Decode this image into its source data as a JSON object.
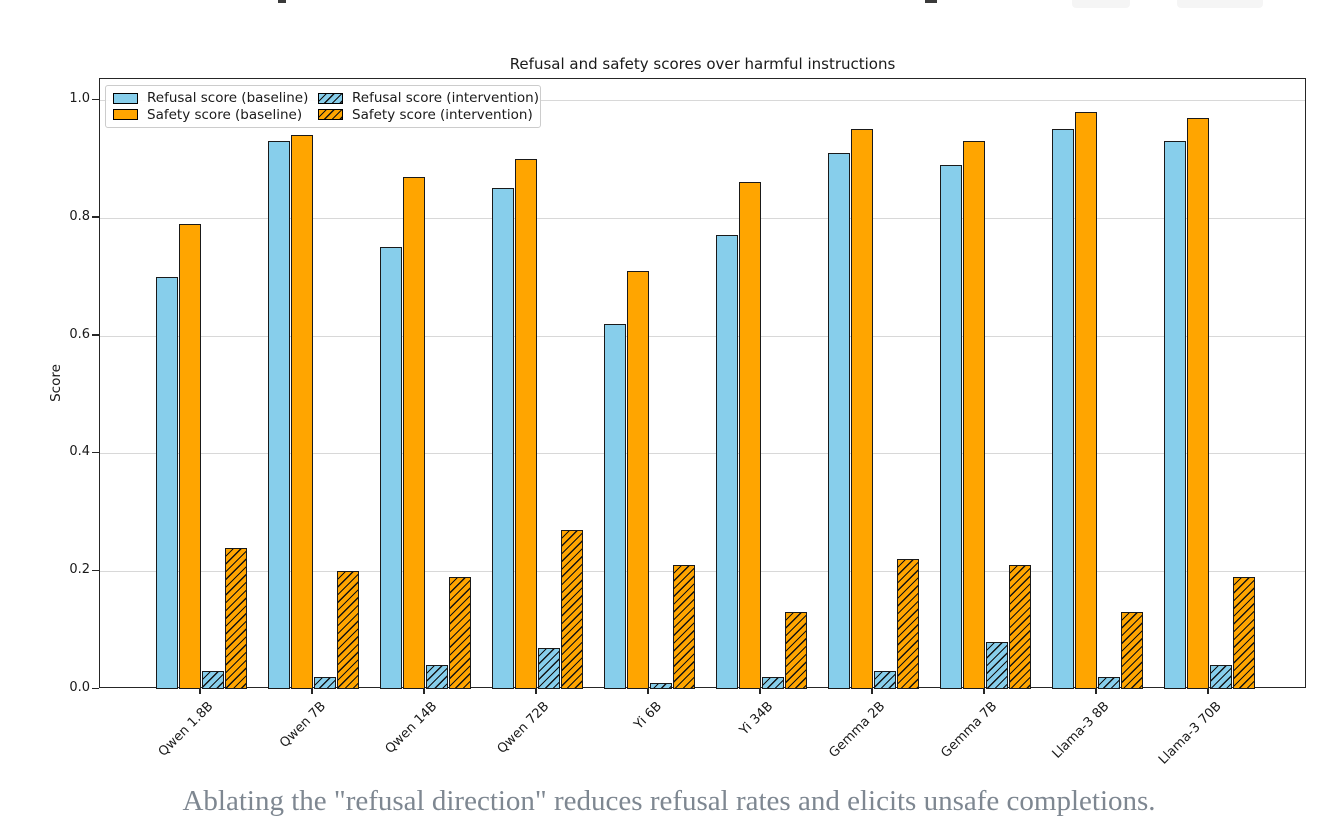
{
  "page": {
    "caption": "Ablating the \"refusal direction\" reduces refusal rates and elicits unsafe completions.",
    "decor": {
      "fragment_button_color": "#f5f5f5",
      "speck_color": "#3a3a3a"
    }
  },
  "chart_data": {
    "type": "bar",
    "title": "Refusal and safety scores over harmful instructions",
    "xlabel": "",
    "ylabel": "Score",
    "ylim": [
      0.0,
      1.04
    ],
    "yticks": [
      0.0,
      0.2,
      0.4,
      0.6,
      0.8,
      1.0
    ],
    "grid": true,
    "legend_position": "upper left",
    "categories": [
      "Qwen 1.8B",
      "Qwen 7B",
      "Qwen 14B",
      "Qwen 72B",
      "Yi 6B",
      "Yi 34B",
      "Gemma 2B",
      "Gemma 7B",
      "Llama-3 8B",
      "Llama-3 70B"
    ],
    "series": [
      {
        "name": "Refusal score (baseline)",
        "color": "#87CEEB",
        "hatch": false,
        "values": [
          0.7,
          0.93,
          0.75,
          0.85,
          0.62,
          0.77,
          0.91,
          0.89,
          0.95,
          0.93
        ]
      },
      {
        "name": "Safety score (baseline)",
        "color": "#FFA500",
        "hatch": false,
        "values": [
          0.79,
          0.94,
          0.87,
          0.9,
          0.71,
          0.86,
          0.95,
          0.93,
          0.98,
          0.97
        ]
      },
      {
        "name": "Refusal score (intervention)",
        "color": "#87CEEB",
        "hatch": true,
        "values": [
          0.03,
          0.02,
          0.04,
          0.07,
          0.01,
          0.02,
          0.03,
          0.08,
          0.02,
          0.04
        ]
      },
      {
        "name": "Safety score (intervention)",
        "color": "#FFA500",
        "hatch": true,
        "values": [
          0.24,
          0.2,
          0.19,
          0.27,
          0.21,
          0.13,
          0.22,
          0.21,
          0.13,
          0.19
        ]
      }
    ]
  }
}
